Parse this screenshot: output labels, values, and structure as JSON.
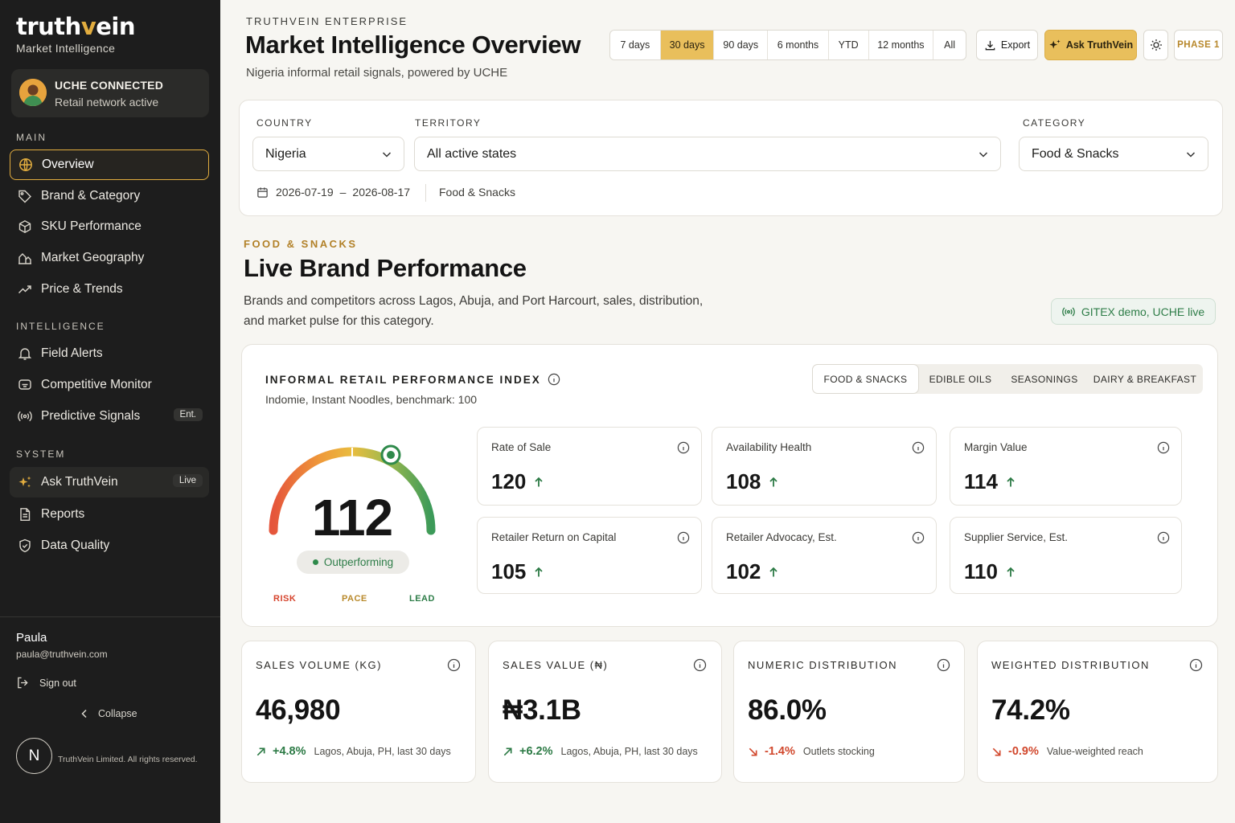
{
  "sidebar": {
    "logo_a": "truth",
    "logo_v": "v",
    "logo_b": "ein",
    "logo_sub": "Market Intelligence",
    "connection": {
      "title": "UCHE CONNECTED",
      "subtitle": "Retail network active"
    },
    "sections": {
      "main": "MAIN",
      "intelligence": "INTELLIGENCE",
      "system": "SYSTEM"
    },
    "main_items": [
      {
        "label": "Overview",
        "icon": "globe-icon"
      },
      {
        "label": "Brand & Category",
        "icon": "tag-icon"
      },
      {
        "label": "SKU Performance",
        "icon": "box-icon"
      },
      {
        "label": "Market Geography",
        "icon": "map-icon"
      },
      {
        "label": "Price & Trends",
        "icon": "trend-icon"
      }
    ],
    "intel_items": [
      {
        "label": "Field Alerts",
        "icon": "bell-icon"
      },
      {
        "label": "Competitive Monitor",
        "icon": "monitor-icon"
      },
      {
        "label": "Predictive Signals",
        "icon": "signal-icon",
        "badge": "Ent."
      }
    ],
    "system_items": [
      {
        "label": "Ask TruthVein",
        "icon": "sparkle-icon",
        "badge": "Live"
      },
      {
        "label": "Reports",
        "icon": "document-icon"
      },
      {
        "label": "Data Quality",
        "icon": "shield-icon"
      }
    ],
    "user": {
      "name": "Paula",
      "email": "paula@truthvein.com"
    },
    "sign_out": "Sign out",
    "collapse": "Collapse",
    "avatar_letter": "N",
    "copyright": "TruthVein Limited. All rights reserved."
  },
  "header": {
    "eyebrow": "TRUTHVEIN ENTERPRISE",
    "title": "Market Intelligence Overview",
    "subtitle": "Nigeria informal retail signals, powered by UCHE",
    "ranges": [
      "7 days",
      "30 days",
      "90 days",
      "6 months",
      "YTD",
      "12 months",
      "All"
    ],
    "active_range": "30 days",
    "export": "Export",
    "ask": "Ask TruthVein",
    "phase": "PHASE 1"
  },
  "filters": {
    "country_label": "COUNTRY",
    "country_value": "Nigeria",
    "territory_label": "TERRITORY",
    "territory_value": "All active states",
    "category_label": "CATEGORY",
    "category_value": "Food & Snacks",
    "date_start": "2026-07-19",
    "date_sep": "–",
    "date_end": "2026-08-17",
    "category_tag": "Food & Snacks"
  },
  "section": {
    "eyebrow": "FOOD & SNACKS",
    "title": "Live Brand Performance",
    "description": "Brands and competitors across Lagos, Abuja, and Port Harcourt, sales, distribution, and market pulse for this category.",
    "demo_pill": "GITEX demo, UCHE live"
  },
  "index": {
    "title": "INFORMAL RETAIL PERFORMANCE INDEX",
    "subtitle": "Indomie, Instant Noodles, benchmark: 100",
    "tabs": [
      "FOOD & SNACKS",
      "EDIBLE OILS",
      "SEASONINGS",
      "DAIRY & BREAKFAST"
    ],
    "active_tab": "FOOD & SNACKS",
    "gauge": {
      "value": "112",
      "status": "Outperforming",
      "labels": [
        "RISK",
        "PACE",
        "LEAD"
      ]
    },
    "metrics": [
      {
        "name": "Rate of Sale",
        "value": "120",
        "trend": "up"
      },
      {
        "name": "Availability Health",
        "value": "108",
        "trend": "up"
      },
      {
        "name": "Margin Value",
        "value": "114",
        "trend": "up"
      },
      {
        "name": "Retailer Return on Capital",
        "value": "105",
        "trend": "up"
      },
      {
        "name": "Retailer Advocacy, Est.",
        "value": "102",
        "trend": "up"
      },
      {
        "name": "Supplier Service, Est.",
        "value": "110",
        "trend": "up"
      }
    ]
  },
  "kpis": [
    {
      "title": "SALES VOLUME (KG)",
      "value": "46,980",
      "delta": "+4.8%",
      "direction": "up",
      "note": "Lagos, Abuja, PH, last 30 days"
    },
    {
      "title": "SALES VALUE (₦)",
      "value": "₦3.1B",
      "delta": "+6.2%",
      "direction": "up",
      "note": "Lagos, Abuja, PH, last 30 days"
    },
    {
      "title": "NUMERIC DISTRIBUTION",
      "value": "86.0%",
      "delta": "-1.4%",
      "direction": "down",
      "note": "Outlets stocking"
    },
    {
      "title": "WEIGHTED DISTRIBUTION",
      "value": "74.2%",
      "delta": "-0.9%",
      "direction": "down",
      "note": "Value-weighted reach"
    }
  ],
  "colors": {
    "accent": "#e9bf5c",
    "gold_text": "#b28128",
    "positive": "#2c7a45",
    "negative": "#d1482d",
    "sidebar": "#1d1d1d"
  }
}
